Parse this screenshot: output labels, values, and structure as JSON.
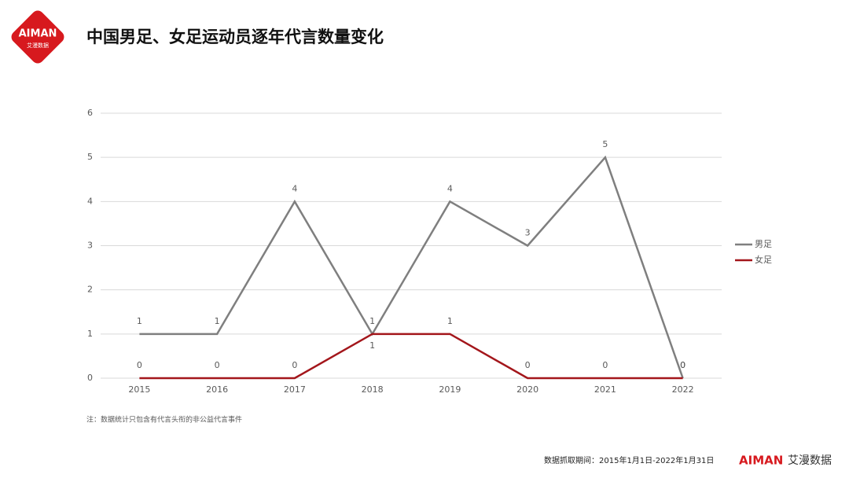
{
  "logo": {
    "brand": "AIMAN",
    "sub": "艾漫数据"
  },
  "chart_data": {
    "type": "line",
    "title": "中国男足、女足运动员逐年代言数量变化",
    "categories": [
      "2015",
      "2016",
      "2017",
      "2018",
      "2019",
      "2020",
      "2021",
      "2022"
    ],
    "series": [
      {
        "name": "男足",
        "color": "#7f7f7f",
        "values": [
          1,
          1,
          4,
          1,
          4,
          3,
          5,
          0
        ]
      },
      {
        "name": "女足",
        "color": "#a3161b",
        "values": [
          0,
          0,
          0,
          1,
          1,
          0,
          0,
          0
        ]
      }
    ],
    "ylim": [
      0,
      6
    ],
    "yticks": [
      0,
      1,
      2,
      3,
      4,
      5,
      6
    ],
    "grid": true,
    "legend": "right",
    "note": "注：数据统计只包含有代言头衔的非公益代言事件",
    "source": "数据抓取期间：2015年1月1日-2022年1月31日"
  }
}
